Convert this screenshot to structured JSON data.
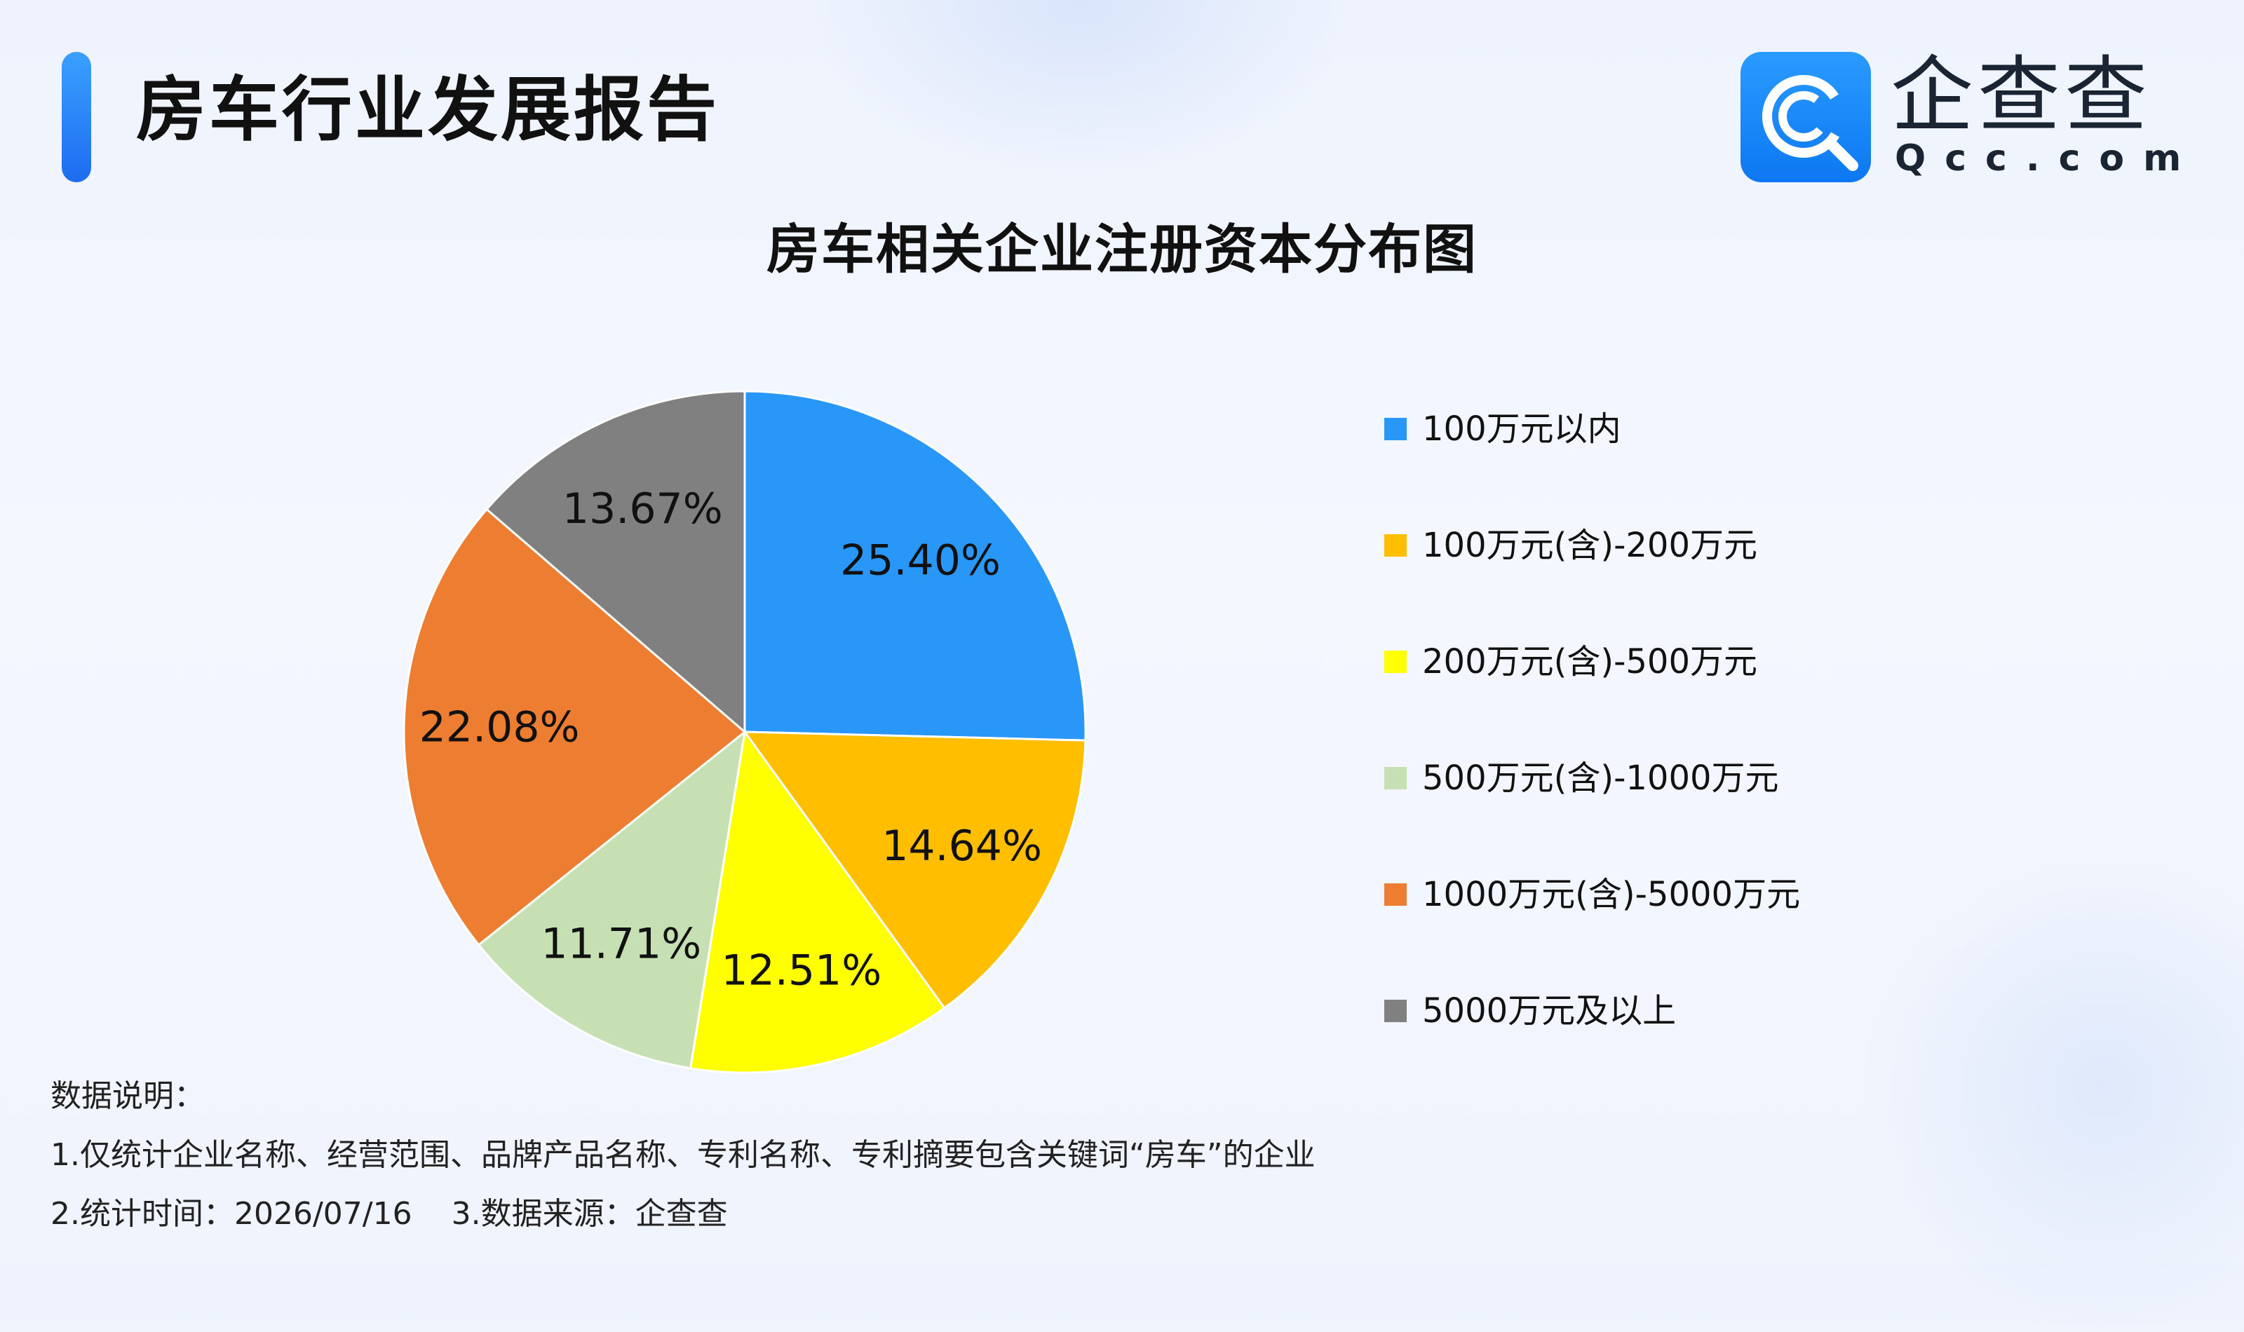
{
  "header": {
    "report_title": "房车行业发展报告",
    "logo_name": "企查查",
    "logo_domain": "Qcc.com",
    "logo_icon": "qcc-magnifier-icon"
  },
  "chart_data": {
    "type": "pie",
    "title": "房车相关企业注册资本分布图",
    "categories": [
      "100万元以内",
      "100万元(含)-200万元",
      "200万元(含)-500万元",
      "500万元(含)-1000万元",
      "1000万元(含)-5000万元",
      "5000万元及以上"
    ],
    "values": [
      25.4,
      14.64,
      12.51,
      11.71,
      22.08,
      13.67
    ],
    "labels": [
      "25.40%",
      "14.64%",
      "12.51%",
      "11.71%",
      "22.08%",
      "13.67%"
    ],
    "unit": "%",
    "colors": [
      "#2997f7",
      "#ffbf00",
      "#ffff00",
      "#c6e0b4",
      "#ed7d31",
      "#808080"
    ],
    "legend_position": "right"
  },
  "notes": {
    "heading": "数据说明：",
    "line1": "1.仅统计企业名称、经营范围、品牌产品名称、专利名称、专利摘要包含关键词“房车”的企业",
    "line2a": "2.统计时间：2026/07/16",
    "line2b": "3.数据来源：企查查"
  }
}
